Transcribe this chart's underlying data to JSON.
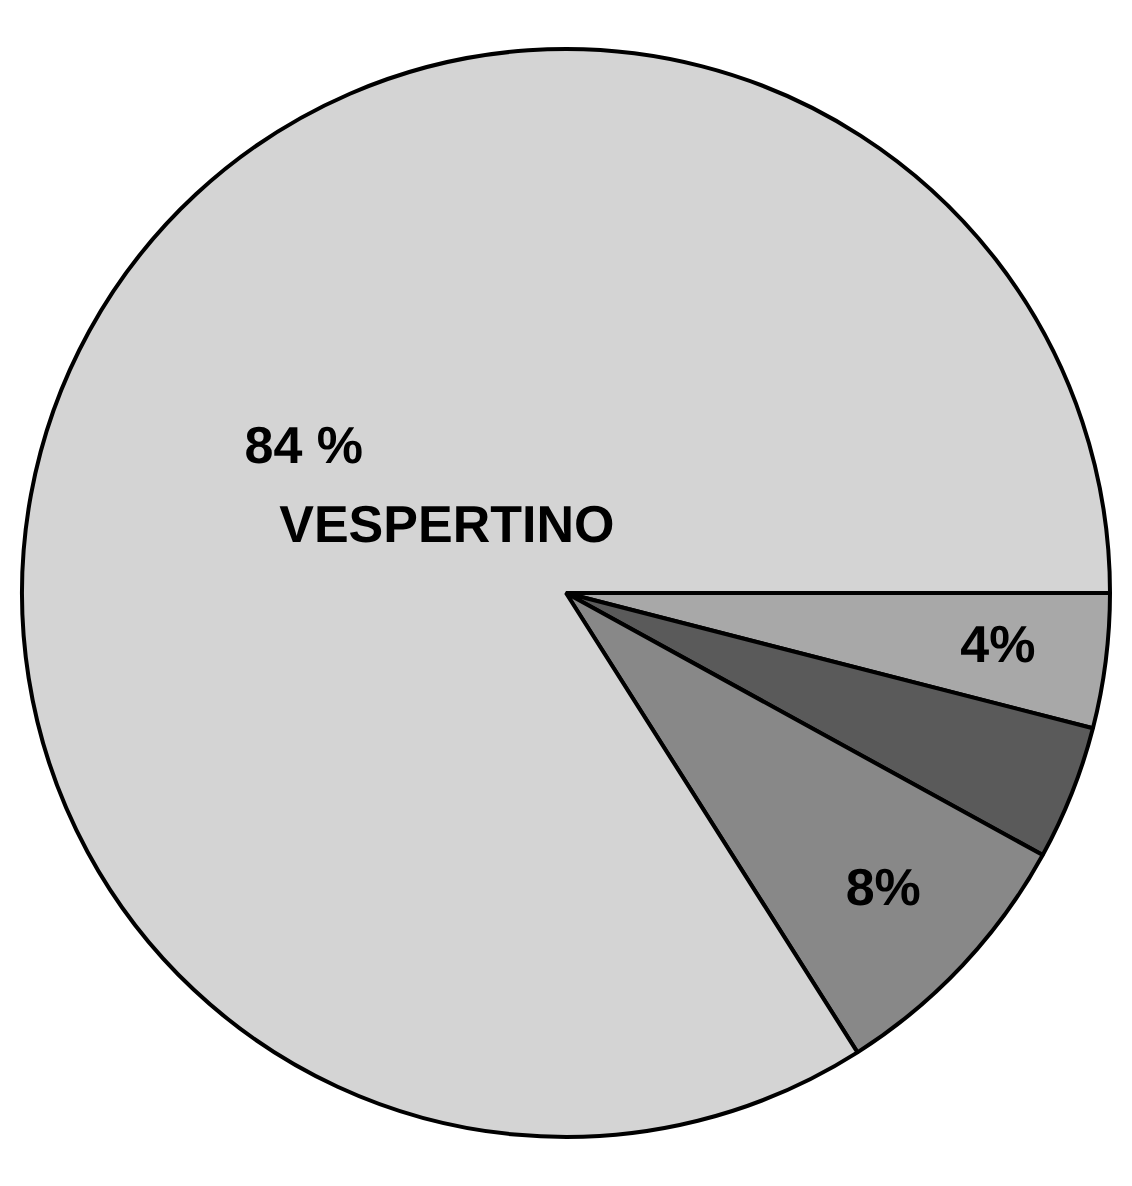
{
  "chart_data": {
    "type": "pie",
    "categories": [
      null,
      null,
      null,
      "VESPERTINO"
    ],
    "values": [
      4,
      4,
      8,
      84
    ],
    "value_labels": [
      "4%",
      null,
      "8%",
      "84 %"
    ],
    "colors": [
      "#a8a8a8",
      "#5a5a5a",
      "#888888",
      "#d4d4d4"
    ],
    "legend": false
  }
}
